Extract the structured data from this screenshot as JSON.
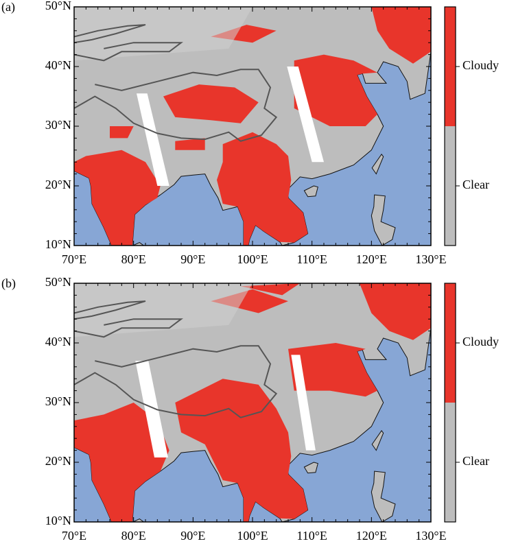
{
  "panels": [
    {
      "label": "(a)",
      "x_ticks": [
        "70°E",
        "80°E",
        "90°E",
        "100°E",
        "110°E",
        "120°E",
        "130°E"
      ],
      "y_ticks": [
        "50°N",
        "40°N",
        "30°N",
        "20°N",
        "10°N"
      ],
      "legend": [
        "Cloudy",
        "Clear"
      ]
    },
    {
      "label": "(b)",
      "x_ticks": [
        "70°E",
        "80°E",
        "90°E",
        "100°E",
        "110°E",
        "120°E",
        "130°E"
      ],
      "y_ticks": [
        "50°N",
        "40°N",
        "30°N",
        "20°N",
        "10°N"
      ],
      "legend": [
        "Cloudy",
        "Clear"
      ]
    }
  ]
}
